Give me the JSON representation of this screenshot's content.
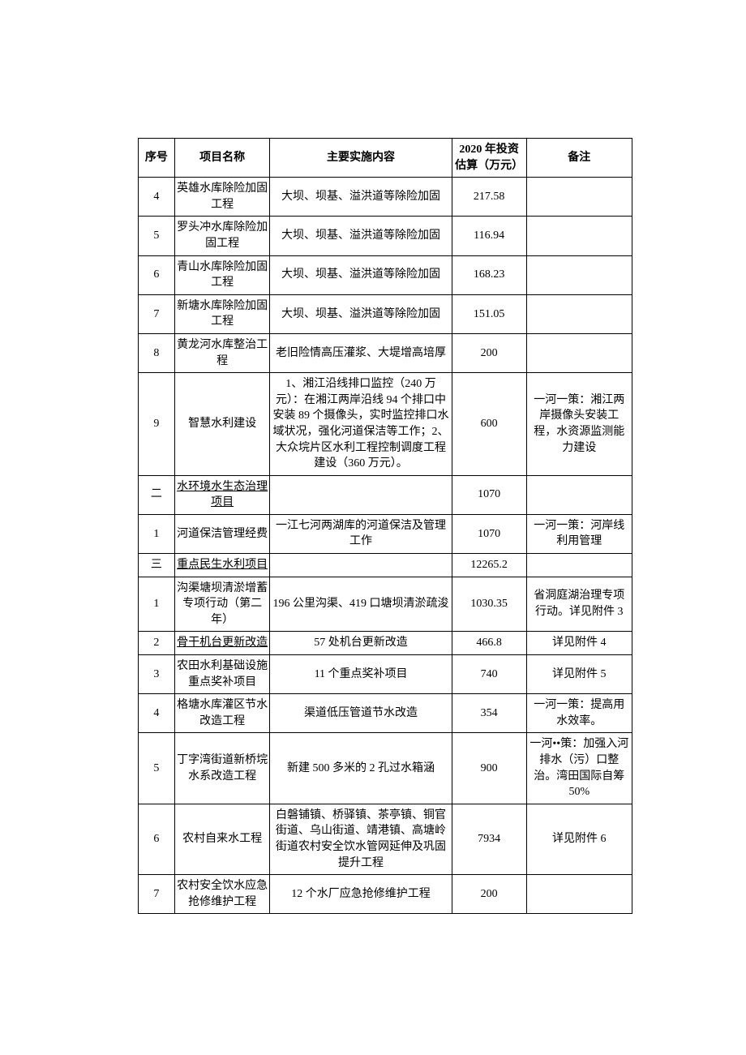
{
  "columns": [
    {
      "label": "序号"
    },
    {
      "label": "项目名称"
    },
    {
      "label": "主要实施内容"
    },
    {
      "label": "2020 年投资估算（万元）"
    },
    {
      "label": "备注"
    }
  ],
  "rows": [
    {
      "seq": "4",
      "name": "英雄水库除险加固工程",
      "content": "大坝、坝基、溢洪道等除险加固",
      "invest": "217.58",
      "notes": ""
    },
    {
      "seq": "5",
      "name": "罗头冲水库除险加固工程",
      "content": "大坝、坝基、溢洪道等除险加固",
      "invest": "116.94",
      "notes": ""
    },
    {
      "seq": "6",
      "name": "青山水库除险加固工程",
      "content": "大坝、坝基、溢洪道等除险加固",
      "invest": "168.23",
      "notes": ""
    },
    {
      "seq": "7",
      "name": "新塘水库除险加固工程",
      "content": "大坝、坝基、溢洪道等除险加固",
      "invest": "151.05",
      "notes": ""
    },
    {
      "seq": "8",
      "name": "黄龙河水库整治工程",
      "content": "老旧险情高压灌浆、大堤增高培厚",
      "invest": "200",
      "notes": ""
    },
    {
      "seq": "9",
      "name": "智慧水利建设",
      "content": "1、湘江沿线排口监控（240 万元）：在湘江两岸沿线 94 个排口中安装 89 个摄像头，实时监控排口水域状况，强化河道保洁等工作；2、大众垸片区水利工程控制调度工程建设（360 万元）。",
      "invest": "600",
      "notes": "一河一策：湘江两岸摄像头安装工程，水资源监测能力建设"
    },
    {
      "seq": "二",
      "name": "水环境水生态治理项目",
      "content": "",
      "invest": "1070",
      "notes": "",
      "underline_name": true
    },
    {
      "seq": "1",
      "name": "河道保洁管理经费",
      "content": "一江七河两湖库的河道保洁及管理工作",
      "invest": "1070",
      "notes": "一河一策：河岸线利用管理"
    },
    {
      "seq": "三",
      "name": "重点民生水利项目",
      "content": "",
      "invest": "12265.2",
      "notes": "",
      "underline_name": true
    },
    {
      "seq": "1",
      "name": "沟渠塘坝清淤增蓄专项行动（第二年）",
      "content": "196 公里沟渠、419 口塘坝清淤疏浚",
      "invest": "1030.35",
      "notes": "省洞庭湖治理专项行动。详见附件 3"
    },
    {
      "seq": "2",
      "name": "骨干机台更新改造",
      "content": "57 处机台更新改造",
      "invest": "466.8",
      "notes": "详见附件 4",
      "underline_name": true
    },
    {
      "seq": "3",
      "name": "农田水利基础设施重点奖补项目",
      "content": "11 个重点奖补项目",
      "invest": "740",
      "notes": "详见附件 5"
    },
    {
      "seq": "4",
      "name": "格塘水库灌区节水改造工程",
      "content": "渠道低压管道节水改造",
      "invest": "354",
      "notes": "一河一策：提高用水效率。"
    },
    {
      "seq": "5",
      "name": "丁字湾街道新桥垸水系改造工程",
      "content": "新建 500 多米的 2 孔过水箱涵",
      "invest": "900",
      "notes": "一河••策：加强入河排水（污）口整治。湾田国际自筹 50%"
    },
    {
      "seq": "6",
      "name": "农村自来水工程",
      "content": "白磐铺镇、桥驿镇、茶亭镇、铜官街道、乌山街道、靖港镇、高塘岭街道农村安全饮水管网延伸及巩固提升工程",
      "invest": "7934",
      "notes": "详见附件 6"
    },
    {
      "seq": "7",
      "name": "农村安全饮水应急抢修维护工程",
      "content": "12 个水厂应急抢修维护工程",
      "invest": "200",
      "notes": ""
    }
  ]
}
